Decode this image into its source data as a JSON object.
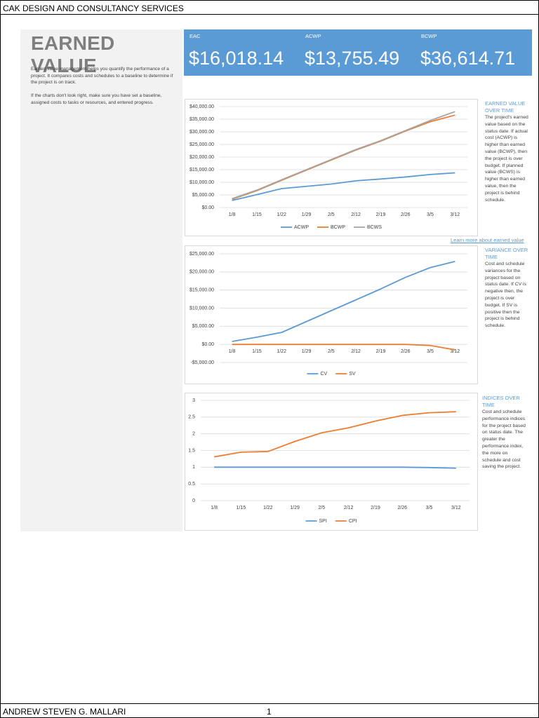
{
  "header": {
    "title": "CAK DESIGN AND CONSULTANCY SERVICES"
  },
  "intro": {
    "title": "EARNED VALUE",
    "paragraphs": [
      "Earned value management helps you quantify the performance of a project. It compares costs and schedules to a baseline to determine if the project is on track.",
      "If the charts don't look right, make sure you have set a baseline, assigned costs to tasks or resources, and entered progress."
    ]
  },
  "kpis": [
    {
      "label": "EAC",
      "value": "$16,018.14"
    },
    {
      "label": "ACWP",
      "value": "$13,755.49"
    },
    {
      "label": "BCWP",
      "value": "$36,614.71"
    }
  ],
  "notes": [
    {
      "title": "EARNED VALUE OVER TIME",
      "text": "The project's earned value based on the status date.  If actual cost (ACWP) is higher than earned value (BCWP), then the project is over budget.  If planned value (BCWS) is higher than earned value, then the project is behind schedule."
    },
    {
      "title": "VARIANCE OVER TIME",
      "text": "Cost and schedule variances for the project based on status date.  If CV is negative then, the project is over budget.  If SV is positive then the project is behind schedule."
    },
    {
      "title": "INDICES OVER TIME",
      "text": "Cost and schedule performance indices for the project based on status date.  The greater the performance index, the more on schedule and cost saving the project."
    }
  ],
  "link": "Learn more about earned value",
  "chart_data": [
    {
      "type": "line",
      "categories": [
        "1/8",
        "1/15",
        "1/22",
        "1/29",
        "2/5",
        "2/12",
        "2/19",
        "2/26",
        "3/5",
        "3/12"
      ],
      "series": [
        {
          "name": "ACWP",
          "color": "#5b9bd5",
          "values": [
            2800,
            5100,
            7500,
            8400,
            9300,
            10600,
            11300,
            12100,
            13100,
            13755.49
          ]
        },
        {
          "name": "BCWP",
          "color": "#ed7d31",
          "values": [
            3300,
            6700,
            10800,
            14800,
            18800,
            22800,
            26300,
            30300,
            34000,
            36614.71
          ]
        },
        {
          "name": "BCWS",
          "color": "#a5a5a5",
          "values": [
            3500,
            6900,
            11000,
            15000,
            19000,
            23000,
            26500,
            30500,
            34500,
            38000
          ]
        }
      ],
      "ylim": [
        0,
        40000
      ],
      "yticks": [
        {
          "value": 0,
          "label": "$0.00"
        },
        {
          "value": 5000,
          "label": "$5,000.00"
        },
        {
          "value": 10000,
          "label": "$10,000.00"
        },
        {
          "value": 15000,
          "label": "$15,000.00"
        },
        {
          "value": 20000,
          "label": "$20,000.00"
        },
        {
          "value": 25000,
          "label": "$25,000.00"
        },
        {
          "value": 30000,
          "label": "$30,000.00"
        },
        {
          "value": 35000,
          "label": "$35,000.00"
        },
        {
          "value": 40000,
          "label": "$40,000.00"
        }
      ],
      "grid": true,
      "legend": "bottom"
    },
    {
      "type": "line",
      "categories": [
        "1/8",
        "1/15",
        "1/22",
        "1/29",
        "2/5",
        "2/12",
        "2/19",
        "2/26",
        "3/5",
        "3/12"
      ],
      "series": [
        {
          "name": "CV",
          "color": "#5b9bd5",
          "values": [
            800,
            2000,
            3300,
            6300,
            9300,
            12300,
            15300,
            18500,
            21200,
            22900
          ]
        },
        {
          "name": "SV",
          "color": "#ed7d31",
          "values": [
            0,
            0,
            0,
            0,
            0,
            0,
            0,
            0,
            -300,
            -1500
          ]
        }
      ],
      "ylim": [
        -5000,
        25000
      ],
      "yticks": [
        {
          "value": -5000,
          "label": "-$5,000.00"
        },
        {
          "value": 0,
          "label": "$0.00"
        },
        {
          "value": 5000,
          "label": "$5,000.00"
        },
        {
          "value": 10000,
          "label": "$10,000.00"
        },
        {
          "value": 15000,
          "label": "$15,000.00"
        },
        {
          "value": 20000,
          "label": "$20,000.00"
        },
        {
          "value": 25000,
          "label": "$25,000.00"
        }
      ],
      "grid": true,
      "legend": "bottom"
    },
    {
      "type": "line",
      "categories": [
        "1/8",
        "1/15",
        "1/22",
        "1/29",
        "2/5",
        "2/12",
        "2/19",
        "2/26",
        "3/5",
        "3/12"
      ],
      "series": [
        {
          "name": "SPI",
          "color": "#5b9bd5",
          "values": [
            1,
            1,
            1,
            1,
            1,
            1,
            1,
            1,
            0.99,
            0.97
          ]
        },
        {
          "name": "CPI",
          "color": "#ed7d31",
          "values": [
            1.31,
            1.45,
            1.47,
            1.77,
            2.03,
            2.18,
            2.38,
            2.55,
            2.63,
            2.66
          ]
        }
      ],
      "ylim": [
        0,
        3
      ],
      "yticks": [
        0,
        0.5,
        1,
        1.5,
        2,
        2.5,
        3
      ],
      "grid": true,
      "legend": "bottom"
    }
  ],
  "footer": {
    "author": "ANDREW STEVEN G. MALLARI",
    "page": 1
  }
}
